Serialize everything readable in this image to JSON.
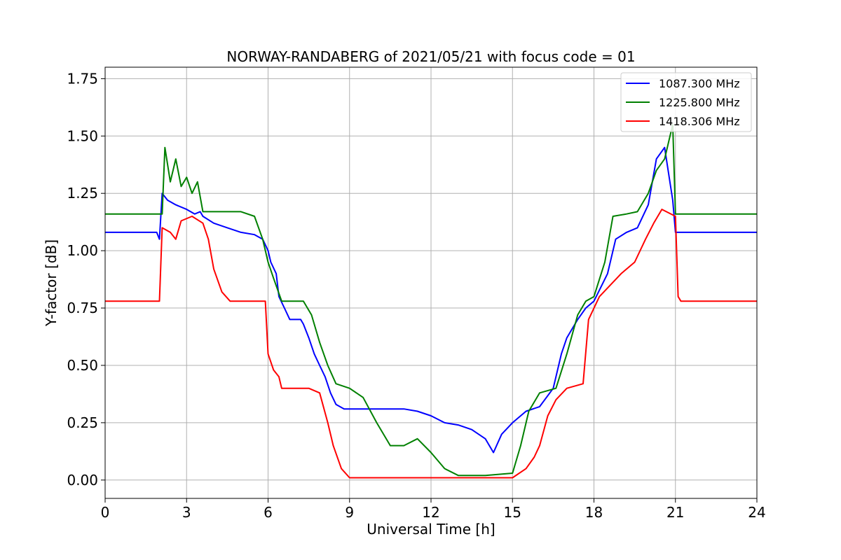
{
  "chart_data": {
    "type": "line",
    "title": "NORWAY-RANDABERG of 2021/05/21 with focus code = 01",
    "xlabel": "Universal Time [h]",
    "ylabel": "Y-factor [dB]",
    "xlim": [
      0,
      24
    ],
    "ylim": [
      -0.08,
      1.8
    ],
    "xticks": [
      "0",
      "3",
      "6",
      "9",
      "12",
      "15",
      "18",
      "21",
      "24"
    ],
    "yticks": [
      "0.00",
      "0.25",
      "0.50",
      "0.75",
      "1.00",
      "1.25",
      "1.50",
      "1.75"
    ],
    "grid": true,
    "legend_position": "upper right",
    "series": [
      {
        "name": "1087.300 MHz",
        "color": "#0000ff",
        "points": [
          [
            0,
            1.08
          ],
          [
            1.9,
            1.08
          ],
          [
            2.0,
            1.05
          ],
          [
            2.1,
            1.25
          ],
          [
            2.3,
            1.22
          ],
          [
            2.6,
            1.2
          ],
          [
            3.0,
            1.18
          ],
          [
            3.3,
            1.16
          ],
          [
            3.5,
            1.17
          ],
          [
            3.6,
            1.15
          ],
          [
            4.0,
            1.12
          ],
          [
            4.5,
            1.1
          ],
          [
            5.0,
            1.08
          ],
          [
            5.5,
            1.07
          ],
          [
            5.8,
            1.05
          ],
          [
            6.0,
            1.0
          ],
          [
            6.1,
            0.95
          ],
          [
            6.3,
            0.9
          ],
          [
            6.4,
            0.8
          ],
          [
            6.6,
            0.75
          ],
          [
            6.8,
            0.7
          ],
          [
            7.2,
            0.7
          ],
          [
            7.3,
            0.68
          ],
          [
            7.5,
            0.62
          ],
          [
            7.7,
            0.55
          ],
          [
            7.9,
            0.5
          ],
          [
            8.1,
            0.45
          ],
          [
            8.3,
            0.38
          ],
          [
            8.5,
            0.33
          ],
          [
            8.8,
            0.31
          ],
          [
            9.5,
            0.31
          ],
          [
            10.0,
            0.31
          ],
          [
            10.5,
            0.31
          ],
          [
            11.0,
            0.31
          ],
          [
            11.5,
            0.3
          ],
          [
            12.0,
            0.28
          ],
          [
            12.5,
            0.25
          ],
          [
            13.0,
            0.24
          ],
          [
            13.5,
            0.22
          ],
          [
            14.0,
            0.18
          ],
          [
            14.3,
            0.12
          ],
          [
            14.6,
            0.2
          ],
          [
            15.0,
            0.25
          ],
          [
            15.5,
            0.3
          ],
          [
            16.0,
            0.32
          ],
          [
            16.5,
            0.4
          ],
          [
            16.8,
            0.55
          ],
          [
            17.0,
            0.62
          ],
          [
            17.4,
            0.7
          ],
          [
            17.7,
            0.75
          ],
          [
            18.0,
            0.78
          ],
          [
            18.5,
            0.9
          ],
          [
            18.8,
            1.05
          ],
          [
            19.2,
            1.08
          ],
          [
            19.6,
            1.1
          ],
          [
            20.0,
            1.2
          ],
          [
            20.3,
            1.4
          ],
          [
            20.6,
            1.45
          ],
          [
            20.9,
            1.22
          ],
          [
            21.0,
            1.08
          ],
          [
            21.5,
            1.08
          ],
          [
            22.0,
            1.08
          ],
          [
            23.0,
            1.08
          ],
          [
            24.0,
            1.08
          ]
        ]
      },
      {
        "name": "1225.800 MHz",
        "color": "#008000",
        "points": [
          [
            0,
            1.16
          ],
          [
            1.9,
            1.16
          ],
          [
            2.1,
            1.16
          ],
          [
            2.2,
            1.45
          ],
          [
            2.4,
            1.3
          ],
          [
            2.6,
            1.4
          ],
          [
            2.8,
            1.28
          ],
          [
            3.0,
            1.32
          ],
          [
            3.2,
            1.25
          ],
          [
            3.4,
            1.3
          ],
          [
            3.6,
            1.17
          ],
          [
            4.0,
            1.17
          ],
          [
            4.5,
            1.17
          ],
          [
            5.0,
            1.17
          ],
          [
            5.5,
            1.15
          ],
          [
            5.8,
            1.05
          ],
          [
            6.0,
            0.95
          ],
          [
            6.2,
            0.88
          ],
          [
            6.5,
            0.78
          ],
          [
            7.0,
            0.78
          ],
          [
            7.3,
            0.78
          ],
          [
            7.6,
            0.72
          ],
          [
            7.9,
            0.6
          ],
          [
            8.2,
            0.5
          ],
          [
            8.5,
            0.42
          ],
          [
            9.0,
            0.4
          ],
          [
            9.5,
            0.36
          ],
          [
            10.0,
            0.25
          ],
          [
            10.5,
            0.15
          ],
          [
            11.0,
            0.15
          ],
          [
            11.5,
            0.18
          ],
          [
            12.0,
            0.12
          ],
          [
            12.5,
            0.05
          ],
          [
            13.0,
            0.02
          ],
          [
            14.0,
            0.02
          ],
          [
            15.0,
            0.03
          ],
          [
            15.3,
            0.15
          ],
          [
            15.6,
            0.3
          ],
          [
            16.0,
            0.38
          ],
          [
            16.6,
            0.4
          ],
          [
            17.0,
            0.55
          ],
          [
            17.4,
            0.72
          ],
          [
            17.7,
            0.78
          ],
          [
            18.0,
            0.8
          ],
          [
            18.4,
            0.95
          ],
          [
            18.7,
            1.15
          ],
          [
            19.2,
            1.16
          ],
          [
            19.6,
            1.17
          ],
          [
            20.0,
            1.25
          ],
          [
            20.3,
            1.35
          ],
          [
            20.6,
            1.4
          ],
          [
            20.9,
            1.55
          ],
          [
            21.0,
            1.16
          ],
          [
            21.5,
            1.16
          ],
          [
            22.0,
            1.16
          ],
          [
            23.0,
            1.16
          ],
          [
            24.0,
            1.16
          ]
        ]
      },
      {
        "name": "1418.306 MHz",
        "color": "#ff0000",
        "points": [
          [
            0,
            0.78
          ],
          [
            2.0,
            0.78
          ],
          [
            2.1,
            1.1
          ],
          [
            2.4,
            1.08
          ],
          [
            2.6,
            1.05
          ],
          [
            2.8,
            1.13
          ],
          [
            3.2,
            1.15
          ],
          [
            3.6,
            1.12
          ],
          [
            3.8,
            1.05
          ],
          [
            4.0,
            0.92
          ],
          [
            4.3,
            0.82
          ],
          [
            4.6,
            0.78
          ],
          [
            5.5,
            0.78
          ],
          [
            5.9,
            0.78
          ],
          [
            6.0,
            0.55
          ],
          [
            6.2,
            0.48
          ],
          [
            6.4,
            0.45
          ],
          [
            6.5,
            0.4
          ],
          [
            7.0,
            0.4
          ],
          [
            7.5,
            0.4
          ],
          [
            7.9,
            0.38
          ],
          [
            8.2,
            0.25
          ],
          [
            8.4,
            0.15
          ],
          [
            8.7,
            0.05
          ],
          [
            9.0,
            0.01
          ],
          [
            10.0,
            0.01
          ],
          [
            11.0,
            0.01
          ],
          [
            12.0,
            0.01
          ],
          [
            13.0,
            0.01
          ],
          [
            14.0,
            0.01
          ],
          [
            15.0,
            0.01
          ],
          [
            15.5,
            0.05
          ],
          [
            15.8,
            0.1
          ],
          [
            16.0,
            0.15
          ],
          [
            16.3,
            0.28
          ],
          [
            16.6,
            0.35
          ],
          [
            17.0,
            0.4
          ],
          [
            17.6,
            0.42
          ],
          [
            17.8,
            0.7
          ],
          [
            18.2,
            0.8
          ],
          [
            18.6,
            0.85
          ],
          [
            19.0,
            0.9
          ],
          [
            19.5,
            0.95
          ],
          [
            19.9,
            1.05
          ],
          [
            20.2,
            1.12
          ],
          [
            20.5,
            1.18
          ],
          [
            21.0,
            1.15
          ],
          [
            21.1,
            0.8
          ],
          [
            21.2,
            0.78
          ],
          [
            22.0,
            0.78
          ],
          [
            23.0,
            0.78
          ],
          [
            24.0,
            0.78
          ]
        ]
      }
    ]
  }
}
